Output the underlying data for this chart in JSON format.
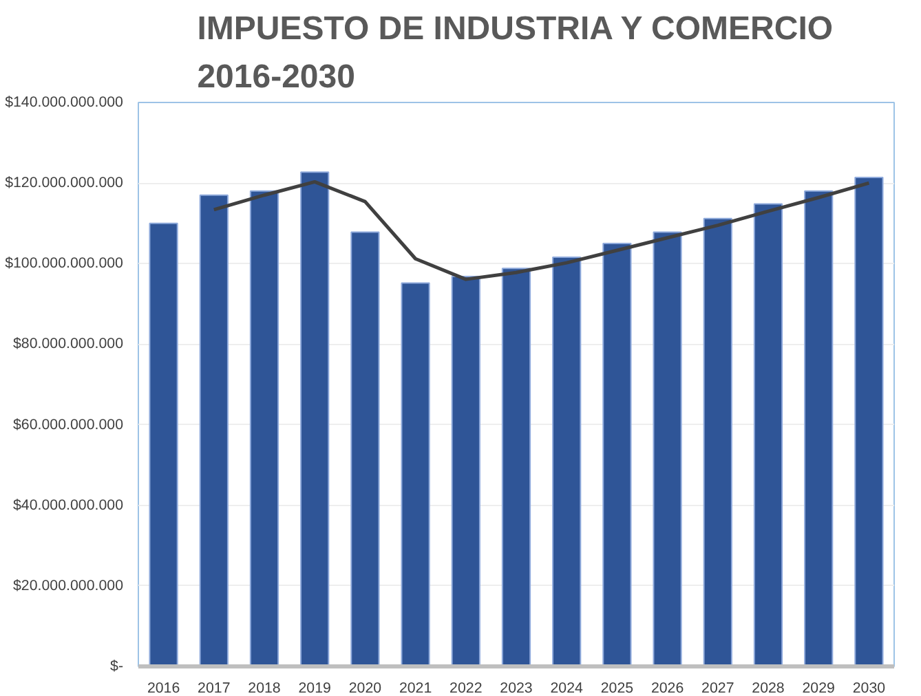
{
  "chart_data": {
    "type": "bar",
    "title": "IMPUESTO DE INDUSTRIA Y COMERCIO\n2016-2030",
    "categories": [
      "2016",
      "2017",
      "2018",
      "2019",
      "2020",
      "2021",
      "2022",
      "2023",
      "2024",
      "2025",
      "2026",
      "2027",
      "2028",
      "2029",
      "2030"
    ],
    "series": [
      {
        "color": "#2f5597",
        "values": [
          110000000000,
          117000000000,
          118000000000,
          122700000000,
          107800000000,
          95200000000,
          96800000000,
          98800000000,
          101600000000,
          105000000000,
          107800000000,
          111200000000,
          114800000000,
          118000000000,
          121400000000
        ]
      },
      {
        "type": "line",
        "color": "#404040",
        "values": [
          null,
          113400000000,
          117000000000,
          120300000000,
          115400000000,
          101200000000,
          96100000000,
          97800000000,
          100200000000,
          103300000000,
          106400000000,
          109500000000,
          113000000000,
          116400000000,
          120000000000
        ]
      }
    ],
    "ylim": [
      0,
      140000000000
    ],
    "yticks": [
      {
        "value": 0,
        "label": "$-"
      },
      {
        "value": 20000000000,
        "label": "$20.000.000.000"
      },
      {
        "value": 40000000000,
        "label": "$40.000.000.000"
      },
      {
        "value": 60000000000,
        "label": "$60.000.000.000"
      },
      {
        "value": 80000000000,
        "label": "$80.000.000.000"
      },
      {
        "value": 100000000000,
        "label": "$100.000.000.000"
      },
      {
        "value": 120000000000,
        "label": "$120.000.000.000"
      },
      {
        "value": 140000000000,
        "label": "$140.000.000.000"
      }
    ],
    "grid": "y",
    "marker": "none",
    "line_style": "solid"
  }
}
